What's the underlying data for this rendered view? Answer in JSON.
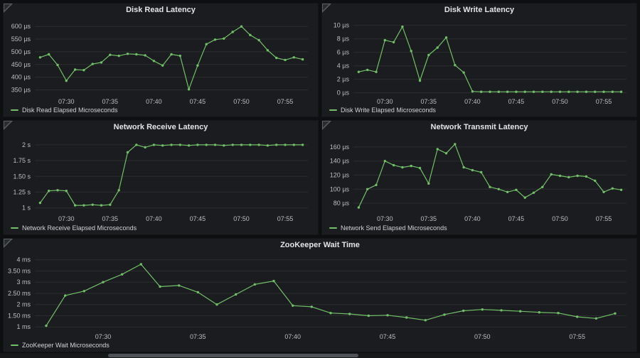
{
  "dashboard": {
    "time_axis_labels": [
      "07:30",
      "07:35",
      "07:40",
      "07:45",
      "07:50",
      "07:55"
    ]
  },
  "chart_data": [
    {
      "type": "line",
      "title": "Disk Read Latency",
      "legend": "Disk Read Elapsed Microseconds",
      "color": "#73bf69",
      "unit": "µs",
      "y_ticks": [
        350,
        400,
        450,
        500,
        550,
        600
      ],
      "y_tick_labels": [
        "350 µs",
        "400 µs",
        "450 µs",
        "500 µs",
        "550 µs",
        "600 µs"
      ],
      "ylim": [
        332,
        620
      ],
      "xlim": [
        26.4,
        57.6
      ],
      "x_start": 27,
      "x_step": 1,
      "x_ticks": [
        30,
        35,
        40,
        45,
        50,
        55
      ],
      "x_tick_labels": [
        "07:30",
        "07:35",
        "07:40",
        "07:45",
        "07:50",
        "07:55"
      ],
      "values": [
        478,
        490,
        448,
        386,
        430,
        428,
        452,
        458,
        488,
        484,
        492,
        490,
        486,
        464,
        446,
        490,
        484,
        352,
        446,
        530,
        548,
        552,
        578,
        600,
        566,
        546,
        506,
        476,
        468,
        478,
        470
      ]
    },
    {
      "type": "line",
      "title": "Disk Write Latency",
      "legend": "Disk Write Elapsed Microseconds",
      "color": "#73bf69",
      "unit": "µs",
      "y_ticks": [
        0,
        2,
        4,
        6,
        8,
        10
      ],
      "y_tick_labels": [
        "0 µs",
        "2 µs",
        "4 µs",
        "6 µs",
        "8 µs",
        "10 µs"
      ],
      "ylim": [
        -0.25,
        10.6
      ],
      "xlim": [
        26.4,
        57.6
      ],
      "x_start": 27,
      "x_step": 1,
      "x_ticks": [
        30,
        35,
        40,
        45,
        50,
        55
      ],
      "x_tick_labels": [
        "07:30",
        "07:35",
        "07:40",
        "07:45",
        "07:50",
        "07:55"
      ],
      "values": [
        3.1,
        3.4,
        3.1,
        7.8,
        7.5,
        9.8,
        6.2,
        1.8,
        5.6,
        6.7,
        8.2,
        4.1,
        3.0,
        0.2,
        0.15,
        0.15,
        0.15,
        0.15,
        0.15,
        0.15,
        0.15,
        0.15,
        0.15,
        0.15,
        0.15,
        0.15,
        0.15,
        0.15,
        0.15,
        0.15,
        0.15
      ]
    },
    {
      "type": "line",
      "title": "Network Receive Latency",
      "legend": "Network Receive Elapsed Microseconds",
      "color": "#73bf69",
      "unit": "s",
      "y_ticks": [
        1,
        1.25,
        1.5,
        1.75,
        2
      ],
      "y_tick_labels": [
        "1 s",
        "1.25 s",
        "1.50 s",
        "1.75 s",
        "2 s"
      ],
      "ylim": [
        0.94,
        2.1
      ],
      "xlim": [
        26.4,
        57.6
      ],
      "x_start": 27,
      "x_step": 1,
      "x_ticks": [
        30,
        35,
        40,
        45,
        50,
        55
      ],
      "x_tick_labels": [
        "07:30",
        "07:35",
        "07:40",
        "07:45",
        "07:50",
        "07:55"
      ],
      "values": [
        1.08,
        1.27,
        1.28,
        1.27,
        1.04,
        1.04,
        1.05,
        1.04,
        1.05,
        1.28,
        1.88,
        2.0,
        1.96,
        2.0,
        1.99,
        2.0,
        2.0,
        1.99,
        2.0,
        2.0,
        2.0,
        1.99,
        2.0,
        2.0,
        2.0,
        2.0,
        1.99,
        2.0,
        2.0,
        2.0,
        2.0
      ]
    },
    {
      "type": "line",
      "title": "Network Transmit Latency",
      "legend": "Network Send Elapsed Microseconds",
      "color": "#73bf69",
      "unit": "µs",
      "y_ticks": [
        80,
        100,
        120,
        140,
        160
      ],
      "y_tick_labels": [
        "80 µs",
        "100 µs",
        "120 µs",
        "140 µs",
        "160 µs"
      ],
      "ylim": [
        68,
        172
      ],
      "xlim": [
        26.4,
        57.6
      ],
      "x_start": 27,
      "x_step": 1,
      "x_ticks": [
        30,
        35,
        40,
        45,
        50,
        55
      ],
      "x_tick_labels": [
        "07:30",
        "07:35",
        "07:40",
        "07:45",
        "07:50",
        "07:55"
      ],
      "values": [
        74,
        100,
        106,
        140,
        134,
        131,
        133,
        130,
        108,
        157,
        151,
        164,
        131,
        127,
        124,
        103,
        100,
        96,
        99,
        88,
        95,
        103,
        121,
        119,
        117,
        119,
        118,
        112,
        96,
        101,
        99
      ]
    },
    {
      "type": "line",
      "title": "ZooKeeper Wait Time",
      "legend": "ZooKeeper Wait Microseconds",
      "color": "#73bf69",
      "unit": "ms",
      "y_ticks": [
        1,
        1.5,
        2,
        2.5,
        3,
        3.5,
        4
      ],
      "y_tick_labels": [
        "1 ms",
        "1.50 ms",
        "2 ms",
        "2.50 ms",
        "3 ms",
        "3.50 ms",
        "4 ms"
      ],
      "ylim": [
        0.88,
        4.15
      ],
      "xlim": [
        26.4,
        57.6
      ],
      "x_start": 27,
      "x_step": 1,
      "x_ticks": [
        30,
        35,
        40,
        45,
        50,
        55
      ],
      "x_tick_labels": [
        "07:30",
        "07:35",
        "07:40",
        "07:45",
        "07:50",
        "07:55"
      ],
      "values": [
        1.05,
        2.4,
        2.6,
        3.0,
        3.35,
        3.8,
        2.8,
        2.85,
        2.55,
        2.0,
        2.45,
        2.9,
        3.05,
        1.95,
        1.9,
        1.62,
        1.58,
        1.5,
        1.52,
        1.42,
        1.3,
        1.55,
        1.72,
        1.78,
        1.74,
        1.7,
        1.65,
        1.62,
        1.45,
        1.38,
        1.6
      ]
    }
  ]
}
